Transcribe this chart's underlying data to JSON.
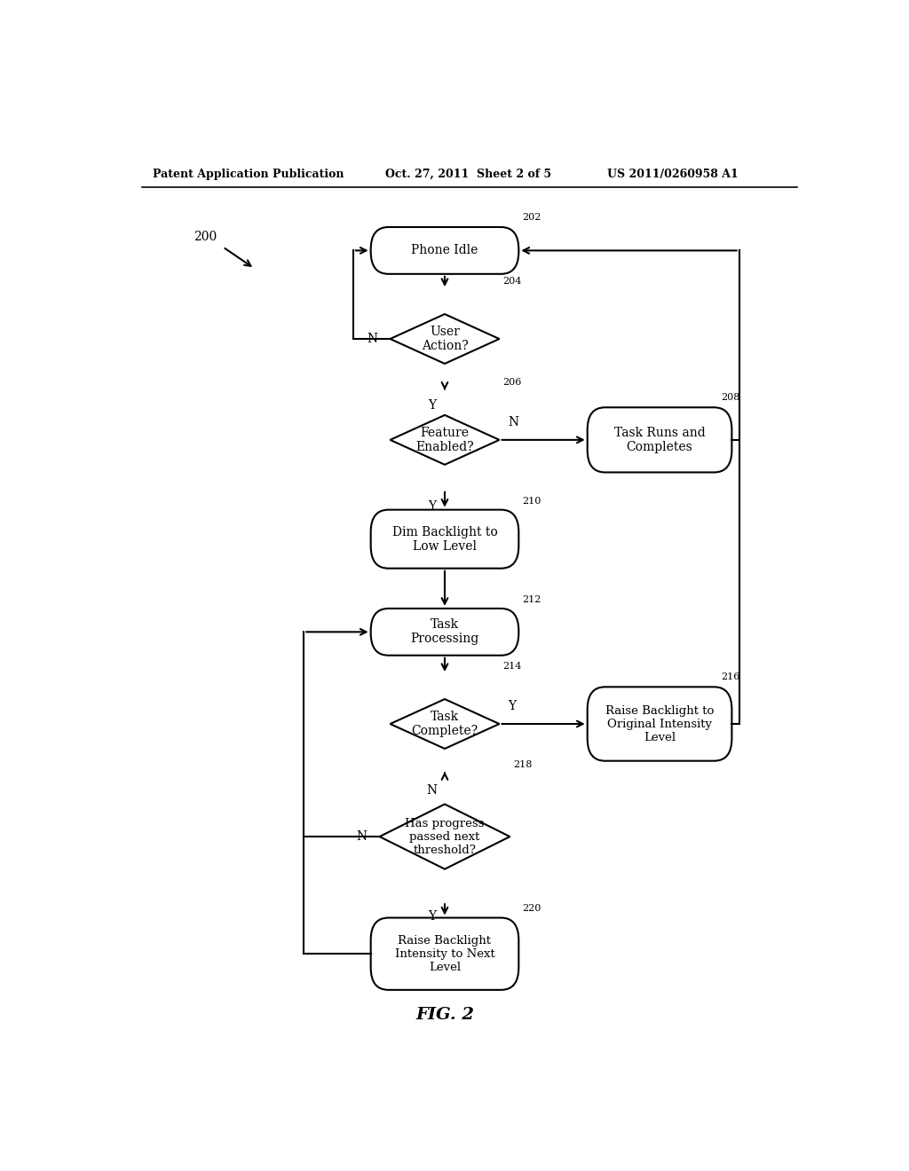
{
  "title": "FIG. 2",
  "header_left": "Patent Application Publication",
  "header_center": "Oct. 27, 2011  Sheet 2 of 5",
  "header_right": "US 2011/0260958 A1",
  "diagram_label": "200",
  "bg_color": "#ffffff",
  "line_color": "#000000",
  "nodes": {
    "202": {
      "label": "Phone Idle",
      "type": "rounded_rect"
    },
    "204": {
      "label": "User\nAction?",
      "type": "diamond"
    },
    "206": {
      "label": "Feature\nEnabled?",
      "type": "diamond"
    },
    "208": {
      "label": "Task Runs and\nCompletes",
      "type": "rounded_rect"
    },
    "210": {
      "label": "Dim Backlight to\nLow Level",
      "type": "rounded_rect"
    },
    "212": {
      "label": "Task\nProcessing",
      "type": "rounded_rect"
    },
    "214": {
      "label": "Task\nComplete?",
      "type": "diamond"
    },
    "216": {
      "label": "Raise Backlight to\nOriginal Intensity\nLevel",
      "type": "rounded_rect"
    },
    "218": {
      "label": "Has progress\npassed next\nthreshold?",
      "type": "diamond"
    },
    "220": {
      "label": "Raise Backlight\nIntensity to Next\nLevel",
      "type": "rounded_rect"
    }
  }
}
